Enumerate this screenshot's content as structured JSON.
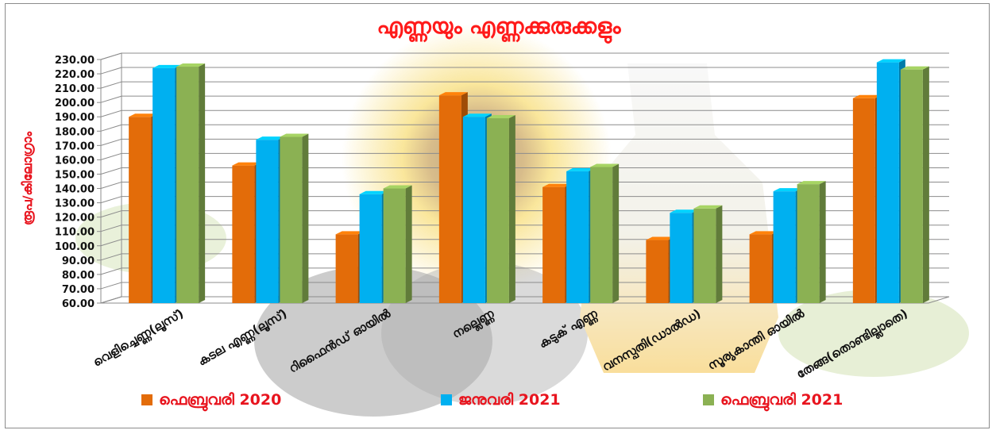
{
  "chart_data": {
    "type": "bar",
    "title": "എണ്ണയും എണ്ണക്കുരുക്കളും",
    "ylabel": "രൂപ/കിലോഗ്രാം",
    "xlabel": "",
    "ylim": [
      60,
      230
    ],
    "ytick_step": 10,
    "grid": true,
    "legend_position": "bottom",
    "categories": [
      "വെളിച്ചെണ്ണ(ലൂസ്)",
      "കടല എണ്ണ(ലൂസ്)",
      "റിഫൈൻഡ് ഓയിൽ",
      "നല്ലെണ്ണ",
      "കടുക് എണ്ണ",
      "വനസ്പതി(ഡാൽഡ)",
      "സൂര്യകാന്തി ഓയിൽ",
      "തേങ്ങ(തൊണ്ടില്ലാതെ)"
    ],
    "series": [
      {
        "name": "ഫെബ്രുവരി 2020",
        "color": "#e36c09",
        "values": [
          190,
          156,
          108,
          205,
          141,
          104,
          108,
          203
        ]
      },
      {
        "name": "ജനുവരി 2021",
        "color": "#00b0f0",
        "values": [
          224,
          174,
          136,
          190,
          152,
          123,
          138,
          228
        ]
      },
      {
        "name": "ഫെബ്രുവരി 2021",
        "color": "#8bb153",
        "values": [
          225,
          176,
          140,
          189,
          155,
          126,
          143,
          223
        ]
      }
    ]
  }
}
